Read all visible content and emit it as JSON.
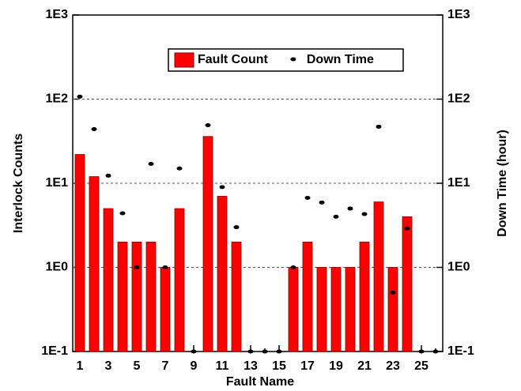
{
  "chart_data": {
    "type": "bar",
    "log_scale": true,
    "grid": true,
    "legend": "top",
    "x_label": "Fault Name",
    "y_label": "Interlock Counts",
    "y2_label": "Down Time (hour)",
    "categories": [
      "1",
      null,
      "3",
      null,
      "5",
      null,
      "7",
      null,
      "9",
      null,
      "11",
      null,
      "13",
      null,
      "15",
      null,
      "17",
      null,
      "19",
      null,
      "21",
      null,
      "23",
      null,
      "25",
      null
    ],
    "series": [
      {
        "name": "Fault Count",
        "color": "#ff0000",
        "type": "bar",
        "values": [
          22,
          12,
          5,
          2,
          2,
          2,
          1,
          5,
          null,
          36,
          7,
          2,
          null,
          null,
          null,
          1,
          2,
          1,
          1,
          1,
          2,
          6,
          1,
          4,
          null,
          null
        ]
      },
      {
        "name": "Down Time",
        "color": "#000000",
        "type": "scatter",
        "axis": "y2",
        "values": [
          107,
          44,
          12.3,
          4.4,
          1,
          17,
          1,
          15,
          0.1,
          49,
          9,
          3,
          0.1,
          0.1,
          0.1,
          1,
          6.7,
          5.9,
          4,
          5,
          4.3,
          47,
          0.5,
          2.9,
          0.1,
          0.1
        ]
      }
    ],
    "ylim": [
      0.1,
      1000
    ],
    "yticks": [
      {
        "value": 0.1,
        "label": "1E-1"
      },
      {
        "value": 1,
        "label": "1E0"
      },
      {
        "value": 10,
        "label": "1E1"
      },
      {
        "value": 100,
        "label": "1E2"
      },
      {
        "value": 1000,
        "label": "1E3"
      }
    ],
    "y2lim": [
      0.1,
      1000
    ],
    "y2ticks": [
      {
        "value": 0.1,
        "label": "1E-1"
      },
      {
        "value": 1,
        "label": "1E0"
      },
      {
        "value": 10,
        "label": "1E1"
      },
      {
        "value": 100,
        "label": "1E2"
      },
      {
        "value": 1000,
        "label": "1E3"
      }
    ]
  }
}
